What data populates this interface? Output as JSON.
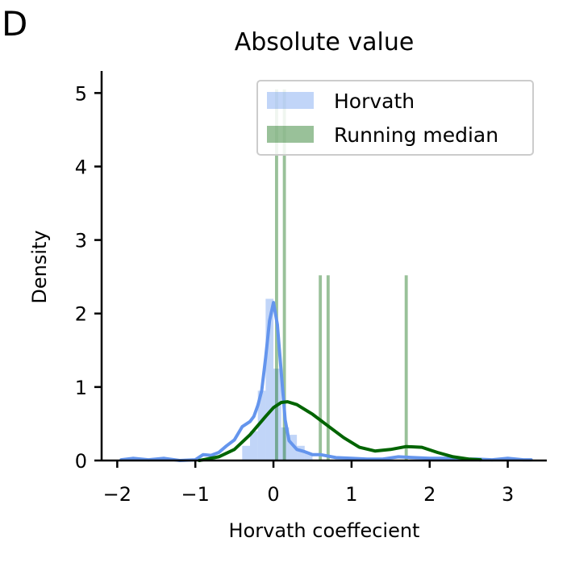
{
  "panel_letter": "D",
  "chart_data": {
    "type": "histogram",
    "title": "Absolute value",
    "xlabel": "Horvath coeffecient",
    "ylabel": "Density",
    "xlim": [
      -2.2,
      3.5
    ],
    "ylim": [
      0,
      5.3
    ],
    "xticks": [
      -2,
      -1,
      0,
      1,
      2,
      3
    ],
    "xtick_labels": [
      "−2",
      "−1",
      "0",
      "1",
      "2",
      "3"
    ],
    "yticks": [
      0,
      1,
      2,
      3,
      4,
      5
    ],
    "ytick_labels": [
      "0",
      "1",
      "2",
      "3",
      "4",
      "5"
    ],
    "grid": false,
    "legend_position": "top-right",
    "series": [
      {
        "name": "Horvath",
        "color": "#6495ed",
        "histogram": {
          "bins": [
            {
              "x0": -0.4,
              "x1": -0.3,
              "value": 0.2
            },
            {
              "x0": -0.3,
              "x1": -0.2,
              "value": 0.4
            },
            {
              "x0": -0.2,
              "x1": -0.1,
              "value": 0.95
            },
            {
              "x0": -0.1,
              "x1": 0.0,
              "value": 2.2
            },
            {
              "x0": 0.0,
              "x1": 0.1,
              "value": 1.25
            },
            {
              "x0": 0.1,
              "x1": 0.2,
              "value": 0.45
            },
            {
              "x0": 0.2,
              "x1": 0.3,
              "value": 0.35
            },
            {
              "x0": 0.3,
              "x1": 0.4,
              "value": 0.2
            },
            {
              "x0": 0.4,
              "x1": 0.5,
              "value": 0.1
            }
          ]
        },
        "kde": {
          "x": [
            -1.95,
            -1.8,
            -1.6,
            -1.4,
            -1.2,
            -1.0,
            -0.9,
            -0.8,
            -0.7,
            -0.6,
            -0.5,
            -0.4,
            -0.3,
            -0.25,
            -0.2,
            -0.15,
            -0.1,
            -0.05,
            0.0,
            0.05,
            0.1,
            0.15,
            0.2,
            0.3,
            0.4,
            0.5,
            0.6,
            0.8,
            1.0,
            1.2,
            1.4,
            1.6,
            1.8,
            2.0,
            2.2,
            2.4,
            2.6,
            2.8,
            3.0,
            3.2,
            3.3
          ],
          "y": [
            0.01,
            0.03,
            0.01,
            0.03,
            0.0,
            0.01,
            0.08,
            0.07,
            0.11,
            0.2,
            0.28,
            0.46,
            0.53,
            0.6,
            0.75,
            0.95,
            1.4,
            1.9,
            2.15,
            1.85,
            1.2,
            0.55,
            0.27,
            0.15,
            0.12,
            0.08,
            0.08,
            0.04,
            0.03,
            0.02,
            0.02,
            0.05,
            0.04,
            0.03,
            0.03,
            0.02,
            0.02,
            0.01,
            0.03,
            0.01,
            0.01
          ]
        }
      },
      {
        "name": "Running median",
        "color": "#006400",
        "histogram": {
          "bins": [
            {
              "x0": 0.02,
              "x1": 0.06,
              "value": 5.05
            },
            {
              "x0": 0.12,
              "x1": 0.16,
              "value": 5.05
            },
            {
              "x0": 0.58,
              "x1": 0.62,
              "value": 2.52
            },
            {
              "x0": 0.68,
              "x1": 0.72,
              "value": 2.52
            },
            {
              "x0": 1.68,
              "x1": 1.72,
              "value": 2.52
            }
          ]
        },
        "kde": {
          "x": [
            -0.95,
            -0.7,
            -0.5,
            -0.3,
            -0.1,
            0.0,
            0.1,
            0.18,
            0.3,
            0.5,
            0.7,
            0.9,
            1.1,
            1.3,
            1.5,
            1.7,
            1.9,
            2.1,
            2.3,
            2.5,
            2.65
          ],
          "y": [
            0.0,
            0.05,
            0.15,
            0.35,
            0.6,
            0.72,
            0.79,
            0.8,
            0.76,
            0.63,
            0.47,
            0.31,
            0.18,
            0.13,
            0.15,
            0.19,
            0.18,
            0.11,
            0.05,
            0.02,
            0.01
          ]
        }
      }
    ]
  }
}
